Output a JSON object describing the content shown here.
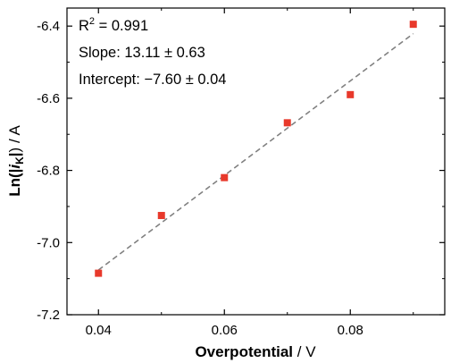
{
  "chart_data": {
    "type": "scatter",
    "title": "",
    "xlabel": {
      "bold": "Overpotential",
      "unit": " / V"
    },
    "ylabel": {
      "prefix": "Ln(",
      "var": "i",
      "sub": "K",
      "suffix": ") / A"
    },
    "xlim": [
      0.035,
      0.095
    ],
    "ylim": [
      -7.2,
      -6.35
    ],
    "xticks": [
      0.04,
      0.06,
      0.08
    ],
    "xticklabels": [
      "0.04",
      "0.06",
      "0.08"
    ],
    "yticks": [
      -7.2,
      -7.0,
      -6.8,
      -6.6,
      -6.4
    ],
    "yticklabels": [
      "-7.2",
      "-7.0",
      "-6.8",
      "-6.6",
      "-6.4"
    ],
    "points": {
      "x": [
        0.04,
        0.05,
        0.06,
        0.07,
        0.08,
        0.09
      ],
      "y": [
        -7.085,
        -6.925,
        -6.82,
        -6.668,
        -6.59,
        -6.395
      ]
    },
    "fit": {
      "x": [
        0.04,
        0.09
      ],
      "y": [
        -7.076,
        -6.421
      ]
    },
    "annotations": {
      "r2_label": "R",
      "r2_sup": "2",
      "r2_value": " = 0.991",
      "slope": "Slope: 13.11 ± 0.63",
      "intercept": "Intercept: −7.60 ± 0.04"
    },
    "grid": false,
    "legend": "none",
    "colors": {
      "marker": "#e8392b",
      "fit_line": "#808080",
      "axis": "#000000"
    }
  }
}
